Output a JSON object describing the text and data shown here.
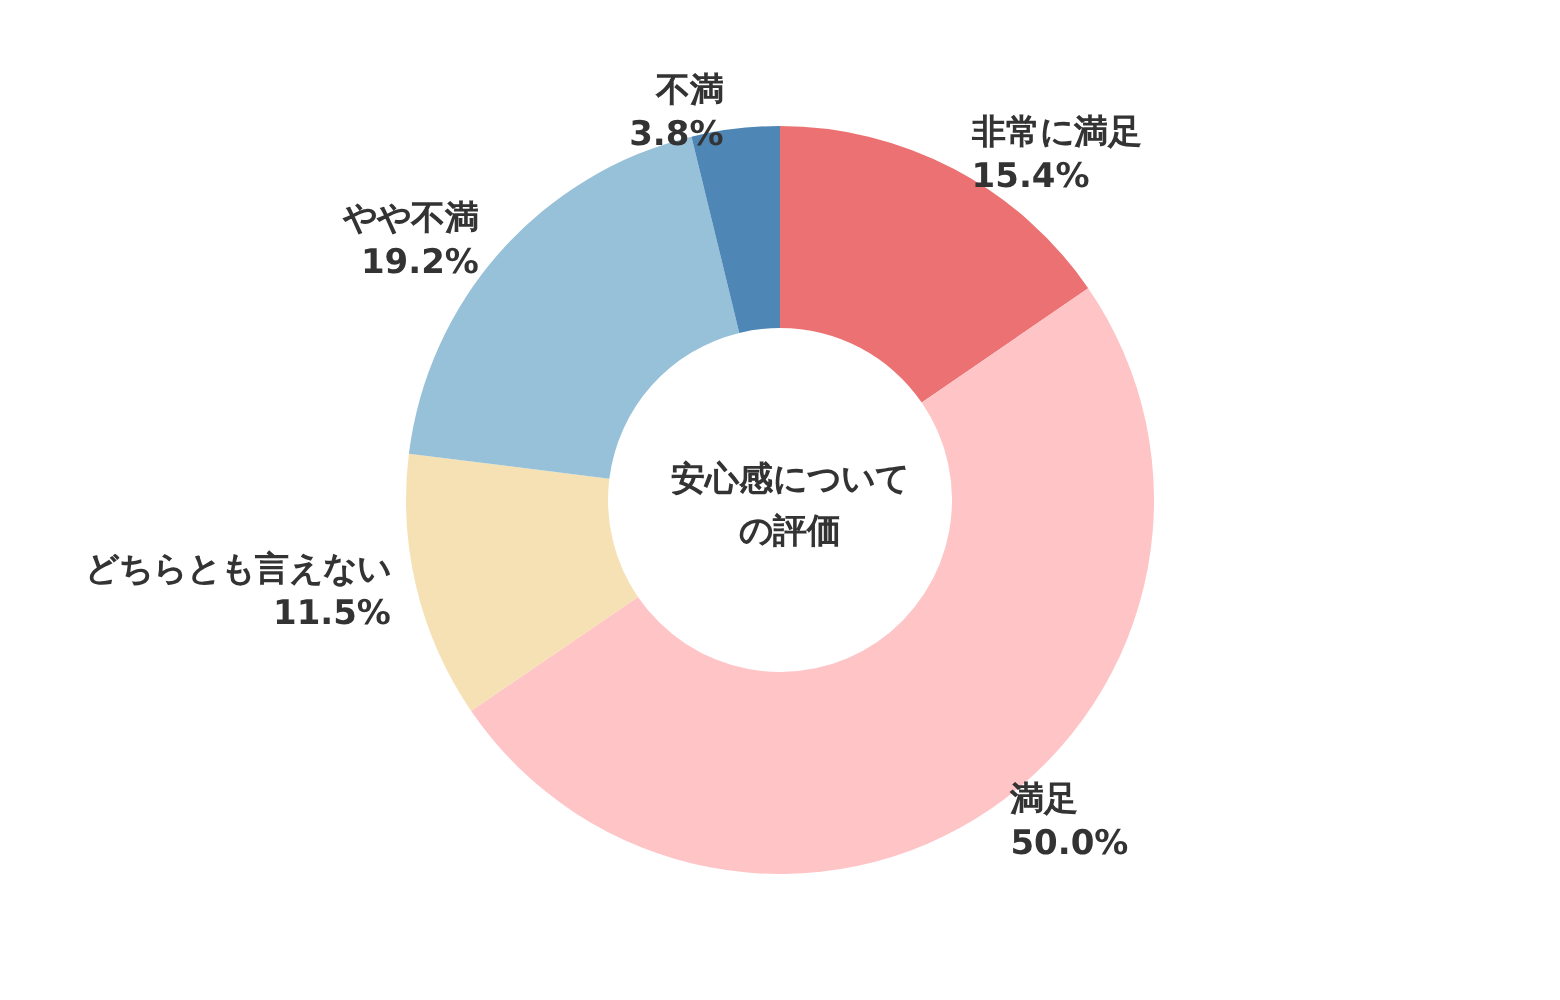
{
  "chart_data": {
    "type": "donut",
    "title": "安心感についての評価",
    "categories": [
      "非常に満足",
      "満足",
      "どちらとも言えない",
      "やや不満",
      "不満"
    ],
    "values": [
      15.4,
      50.0,
      11.5,
      19.2,
      3.8
    ],
    "value_labels": [
      "15.4%",
      "50.0%",
      "11.5%",
      "19.2%",
      "3.8%"
    ],
    "colors": [
      "#ec7172",
      "#fec4c6",
      "#f5e1b4",
      "#96c1d9",
      "#4e86b6"
    ],
    "legend": false
  }
}
